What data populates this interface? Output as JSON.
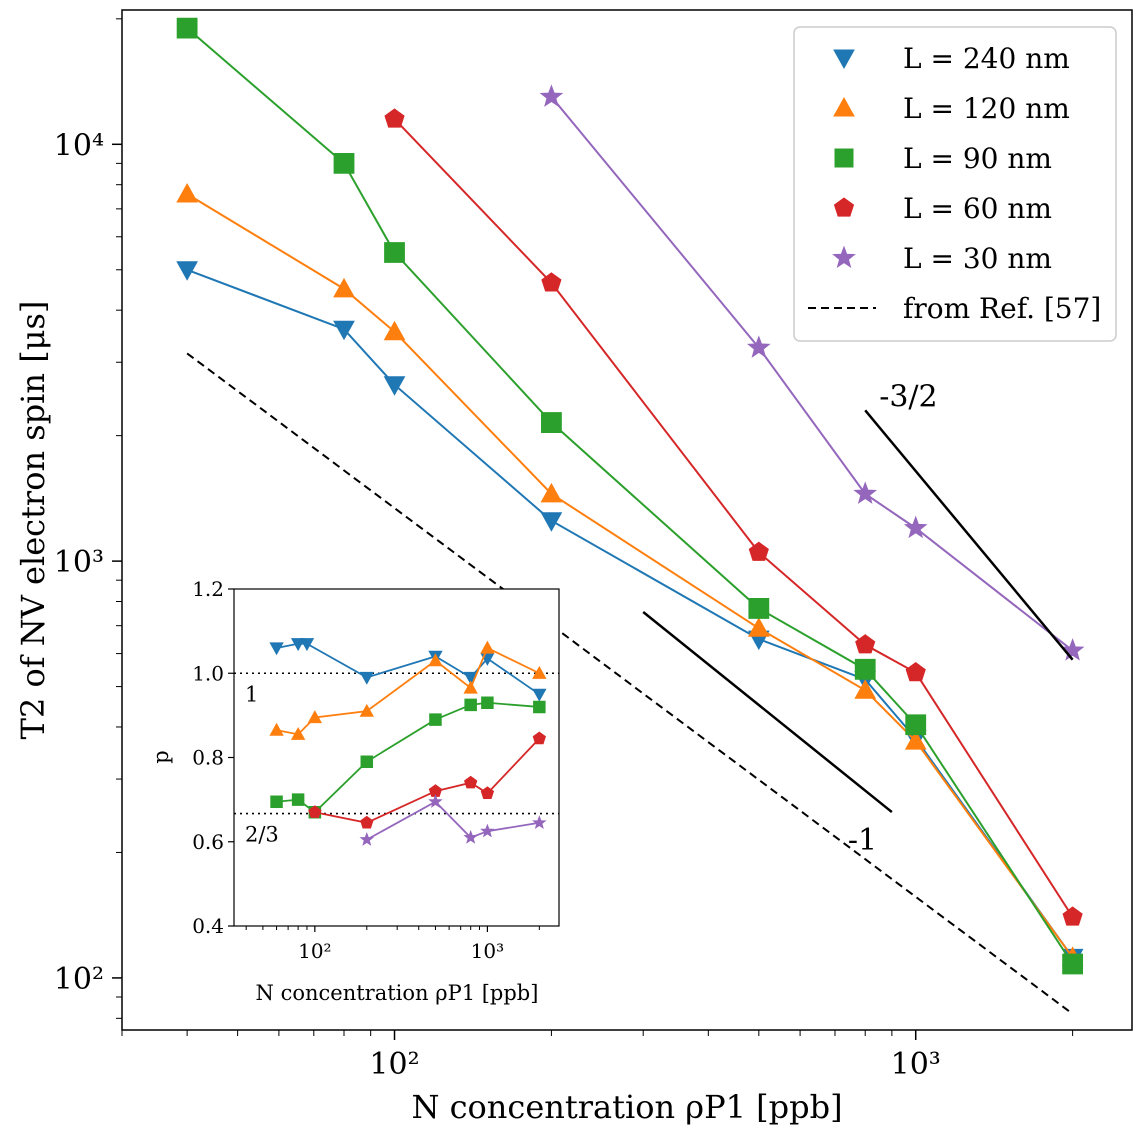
{
  "chart_data": [
    {
      "type": "line",
      "xscale": "log",
      "yscale": "log",
      "xlabel": "N concentration ρP1 [ppb]",
      "ylabel": "T2 of NV electron spin [μs]",
      "xlim": [
        30,
        2600
      ],
      "ylim": [
        75,
        21000
      ],
      "xticks": [
        {
          "value": 100,
          "label": "10²"
        },
        {
          "value": 1000,
          "label": "10³"
        }
      ],
      "yticks": [
        {
          "value": 100,
          "label": "10²"
        },
        {
          "value": 1000,
          "label": "10³"
        },
        {
          "value": 10000,
          "label": "10⁴"
        }
      ],
      "series": [
        {
          "name": "L = 240 nm",
          "color": "#1f77b4",
          "marker": "triangle-down",
          "x": [
            40,
            80,
            100,
            200,
            500,
            800,
            1000,
            2000
          ],
          "y": [
            5000,
            3600,
            2650,
            1250,
            650,
            520,
            375,
            112
          ]
        },
        {
          "name": "L = 120 nm",
          "color": "#ff7f0e",
          "marker": "triangle-up",
          "x": [
            40,
            80,
            100,
            200,
            500,
            800,
            1000,
            2000
          ],
          "y": [
            7600,
            4500,
            3550,
            1450,
            690,
            490,
            370,
            112
          ]
        },
        {
          "name": "L = 90 nm",
          "color": "#2ca02c",
          "marker": "square",
          "x": [
            40,
            80,
            100,
            200,
            500,
            800,
            1000,
            2000
          ],
          "y": [
            19000,
            9000,
            5500,
            2150,
            770,
            550,
            405,
            108
          ]
        },
        {
          "name": "L = 60 nm",
          "color": "#d62728",
          "marker": "pentagon",
          "x": [
            100,
            200,
            500,
            800,
            1000,
            2000
          ],
          "y": [
            11500,
            4650,
            1050,
            630,
            540,
            140
          ]
        },
        {
          "name": "L = 30 nm",
          "color": "#9467bd",
          "marker": "star",
          "x": [
            200,
            500,
            800,
            1000,
            2000
          ],
          "y": [
            13000,
            3250,
            1450,
            1200,
            610
          ]
        }
      ],
      "reference": {
        "name": "from Ref. [57]",
        "style": "dashed",
        "x": [
          40,
          2000
        ],
        "y": [
          3150,
          82
        ]
      },
      "slope_lines": [
        {
          "label": "-3/2",
          "x": [
            800,
            2000
          ],
          "y": [
            2300,
            580
          ]
        },
        {
          "label": "-1",
          "x": [
            300,
            900
          ],
          "y": [
            755,
            250
          ]
        }
      ],
      "legend": {
        "position": "top-right",
        "entries": [
          "L = 240 nm",
          "L = 120 nm",
          "L = 90 nm",
          "L = 60 nm",
          "L = 30 nm",
          "from Ref. [57]"
        ]
      }
    },
    {
      "type": "line",
      "name": "inset",
      "xscale": "log",
      "xlabel": "N concentration ρP1 [ppb]",
      "ylabel": "p",
      "xlim": [
        34,
        2600
      ],
      "ylim": [
        0.4,
        1.2
      ],
      "yticks": [
        0.4,
        0.6,
        0.8,
        1.0,
        1.2
      ],
      "ytick_labels": [
        "0.4",
        "0.6",
        "0.8",
        "1.0",
        "1.2"
      ],
      "xticks": [
        {
          "value": 100,
          "label": "10²"
        },
        {
          "value": 1000,
          "label": "10³"
        }
      ],
      "reference_lines": [
        {
          "y": 1.0,
          "label": "1"
        },
        {
          "y": 0.667,
          "label": "2/3"
        }
      ],
      "series": [
        {
          "name": "L = 240 nm",
          "color": "#1f77b4",
          "marker": "triangle-down",
          "x": [
            60,
            80,
            90,
            200,
            500,
            800,
            1000,
            2000
          ],
          "y": [
            1.06,
            1.07,
            1.07,
            0.99,
            1.04,
            0.99,
            1.035,
            0.95
          ]
        },
        {
          "name": "L = 120 nm",
          "color": "#ff7f0e",
          "marker": "triangle-up",
          "x": [
            60,
            80,
            100,
            200,
            500,
            800,
            1000,
            2000
          ],
          "y": [
            0.865,
            0.855,
            0.895,
            0.91,
            1.03,
            0.965,
            1.06,
            1.0
          ]
        },
        {
          "name": "L = 90 nm",
          "color": "#2ca02c",
          "marker": "square",
          "x": [
            60,
            80,
            100,
            200,
            500,
            800,
            1000,
            2000
          ],
          "y": [
            0.695,
            0.7,
            0.67,
            0.79,
            0.89,
            0.925,
            0.93,
            0.92
          ]
        },
        {
          "name": "L = 60 nm",
          "color": "#d62728",
          "marker": "pentagon",
          "x": [
            100,
            200,
            500,
            800,
            1000,
            2000
          ],
          "y": [
            0.67,
            0.645,
            0.72,
            0.74,
            0.715,
            0.845
          ]
        },
        {
          "name": "L = 30 nm",
          "color": "#9467bd",
          "marker": "star",
          "x": [
            200,
            500,
            800,
            1000,
            2000
          ],
          "y": [
            0.605,
            0.695,
            0.61,
            0.625,
            0.645
          ]
        }
      ]
    }
  ]
}
